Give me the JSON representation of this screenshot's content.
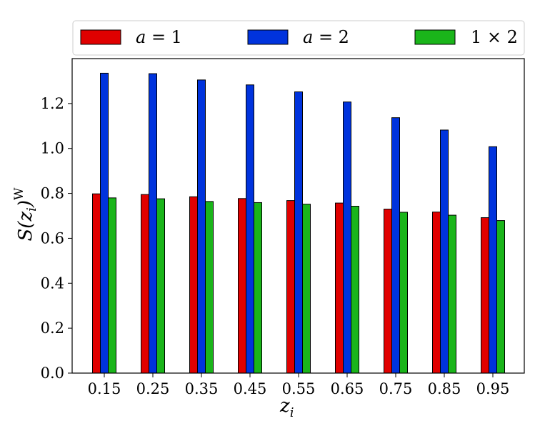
{
  "chart_data": {
    "type": "bar",
    "title": "",
    "xlabel_base": "z",
    "xlabel_sub": "i",
    "ylabel_pre": "S(z",
    "ylabel_sub": "i",
    "ylabel_post": ")",
    "ylabel_sup": "W",
    "categories": [
      "0.15",
      "0.25",
      "0.35",
      "0.45",
      "0.55",
      "0.65",
      "0.75",
      "0.85",
      "0.95"
    ],
    "ylim": [
      0.0,
      1.4
    ],
    "yticks": [
      "0.0",
      "0.2",
      "0.4",
      "0.6",
      "0.8",
      "1.0",
      "1.2"
    ],
    "legend": {
      "placement": "top",
      "columns": 3
    },
    "series": [
      {
        "label_var": "a",
        "label_rest": " = 1",
        "color": "#e00000",
        "values": [
          0.798,
          0.795,
          0.785,
          0.777,
          0.768,
          0.757,
          0.73,
          0.717,
          0.692
        ]
      },
      {
        "label_var": "a",
        "label_rest": " = 2",
        "color": "#0033dd",
        "values": [
          1.335,
          1.333,
          1.305,
          1.283,
          1.252,
          1.207,
          1.137,
          1.082,
          1.008
        ]
      },
      {
        "label_var": "",
        "label_rest": "1 × 2",
        "color": "#1ab51a",
        "values": [
          0.78,
          0.776,
          0.764,
          0.759,
          0.752,
          0.743,
          0.716,
          0.703,
          0.679
        ]
      }
    ]
  }
}
